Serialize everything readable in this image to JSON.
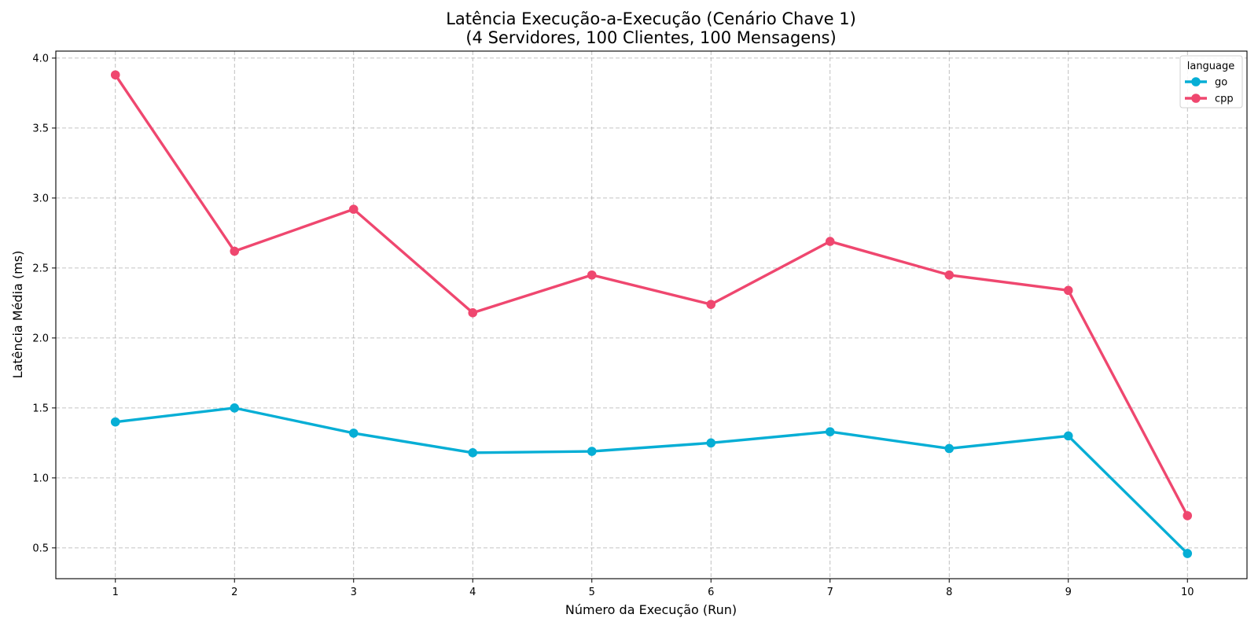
{
  "chart_data": {
    "type": "line",
    "title": "Latência Execução-a-Execução (Cenário Chave 1)",
    "subtitle": "(4 Servidores, 100 Clientes, 100 Mensagens)",
    "xlabel": "Número da Execução (Run)",
    "ylabel": "Latência Média (ms)",
    "x": [
      1,
      2,
      3,
      4,
      5,
      6,
      7,
      8,
      9,
      10
    ],
    "xlim": [
      0.5,
      10.5
    ],
    "ylim": [
      0.28,
      4.05
    ],
    "yticks": [
      0.5,
      1.0,
      1.5,
      2.0,
      2.5,
      3.0,
      3.5,
      4.0
    ],
    "ytick_labels": [
      "0.5",
      "1.0",
      "1.5",
      "2.0",
      "2.5",
      "3.0",
      "3.5",
      "4.0"
    ],
    "xtick_labels": [
      "1",
      "2",
      "3",
      "4",
      "5",
      "6",
      "7",
      "8",
      "9",
      "10"
    ],
    "grid": true,
    "legend": {
      "title": "language",
      "placement": "top-right"
    },
    "series": [
      {
        "name": "go",
        "color": "#06aed5",
        "values": [
          1.4,
          1.5,
          1.32,
          1.18,
          1.19,
          1.25,
          1.33,
          1.21,
          1.3,
          0.46
        ]
      },
      {
        "name": "cpp",
        "color": "#ef476f",
        "values": [
          3.88,
          2.62,
          2.92,
          2.18,
          2.45,
          2.24,
          2.69,
          2.45,
          2.34,
          0.73
        ]
      }
    ]
  }
}
